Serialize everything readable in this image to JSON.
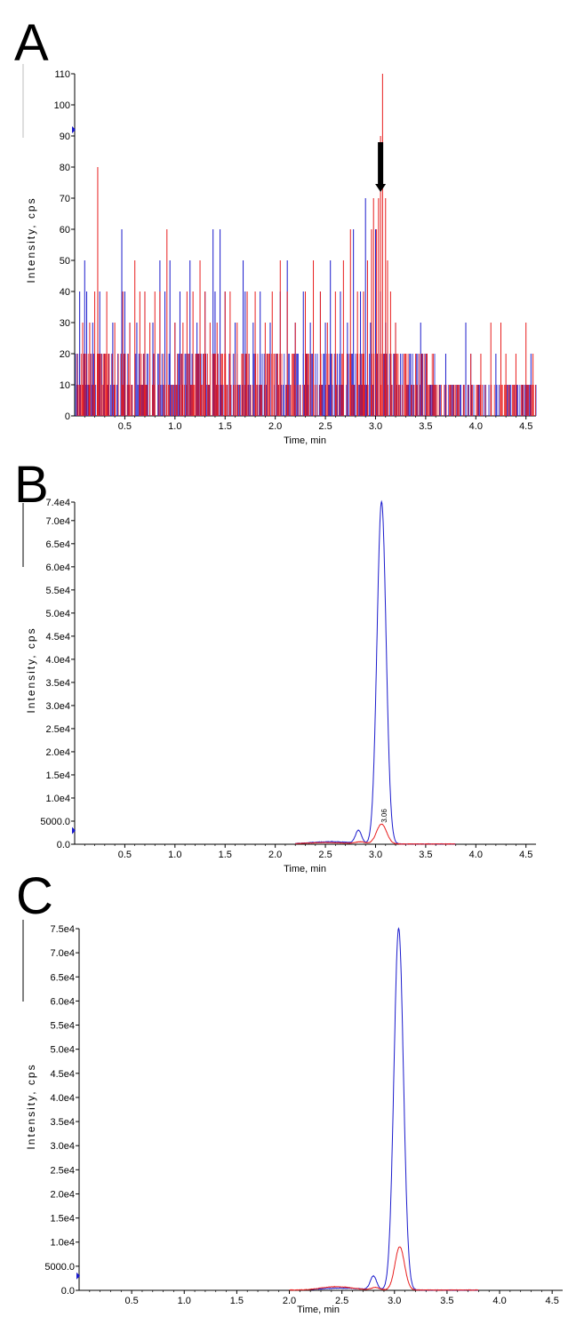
{
  "figure": {
    "colors": {
      "series1": "#1a1acc",
      "series2": "#e81e1e",
      "axis": "#000000"
    }
  },
  "chart_data": [
    {
      "panel": "A",
      "type": "line",
      "style": "noisy-sticks",
      "xlabel": "Time, min",
      "ylabel": "Intensity, cps",
      "xlim": [
        0.0,
        4.6
      ],
      "ylim": [
        0,
        110
      ],
      "x_ticks": [
        "0.5",
        "1.0",
        "1.5",
        "2.0",
        "2.5",
        "3.0",
        "3.5",
        "4.0",
        "4.5"
      ],
      "x_tick_values": [
        0.5,
        1.0,
        1.5,
        2.0,
        2.5,
        3.0,
        3.5,
        4.0,
        4.5
      ],
      "y_ticks": [
        "0",
        "10",
        "20",
        "30",
        "40",
        "50",
        "60",
        "70",
        "80",
        "90",
        "100",
        "110"
      ],
      "y_tick_values": [
        0,
        10,
        20,
        30,
        40,
        50,
        60,
        70,
        80,
        90,
        100,
        110
      ],
      "annotation": {
        "type": "arrow",
        "x": 3.05,
        "y_from": 88,
        "y_to": 72
      },
      "series": [
        {
          "name": "blue trace",
          "color": "#1a1acc",
          "spikes": [
            [
              0.05,
              40
            ],
            [
              0.1,
              50
            ],
            [
              0.12,
              40
            ],
            [
              0.18,
              30
            ],
            [
              0.25,
              40
            ],
            [
              0.3,
              20
            ],
            [
              0.38,
              30
            ],
            [
              0.47,
              60
            ],
            [
              0.5,
              40
            ],
            [
              0.55,
              30
            ],
            [
              0.62,
              30
            ],
            [
              0.7,
              40
            ],
            [
              0.78,
              30
            ],
            [
              0.85,
              50
            ],
            [
              0.9,
              40
            ],
            [
              0.95,
              50
            ],
            [
              1.0,
              30
            ],
            [
              1.05,
              40
            ],
            [
              1.15,
              50
            ],
            [
              1.22,
              30
            ],
            [
              1.3,
              40
            ],
            [
              1.38,
              60
            ],
            [
              1.4,
              40
            ],
            [
              1.45,
              60
            ],
            [
              1.5,
              40
            ],
            [
              1.6,
              30
            ],
            [
              1.68,
              50
            ],
            [
              1.7,
              40
            ],
            [
              1.78,
              30
            ],
            [
              1.85,
              40
            ],
            [
              1.95,
              30
            ],
            [
              2.05,
              40
            ],
            [
              2.12,
              50
            ],
            [
              2.2,
              30
            ],
            [
              2.28,
              40
            ],
            [
              2.35,
              30
            ],
            [
              2.45,
              40
            ],
            [
              2.5,
              30
            ],
            [
              2.55,
              50
            ],
            [
              2.65,
              40
            ],
            [
              2.72,
              30
            ],
            [
              2.78,
              60
            ],
            [
              2.85,
              40
            ],
            [
              2.9,
              70
            ],
            [
              2.95,
              30
            ],
            [
              3.0,
              60
            ],
            [
              3.05,
              40
            ],
            [
              3.1,
              30
            ],
            [
              3.2,
              30
            ],
            [
              3.25,
              20
            ],
            [
              3.35,
              20
            ],
            [
              3.45,
              30
            ],
            [
              3.5,
              20
            ],
            [
              3.55,
              10
            ],
            [
              3.6,
              10
            ],
            [
              3.7,
              20
            ],
            [
              3.75,
              10
            ],
            [
              3.85,
              10
            ],
            [
              3.9,
              30
            ],
            [
              3.95,
              20
            ],
            [
              4.05,
              10
            ],
            [
              4.15,
              10
            ],
            [
              4.2,
              20
            ],
            [
              4.3,
              10
            ],
            [
              4.4,
              10
            ],
            [
              4.5,
              10
            ],
            [
              4.55,
              20
            ]
          ],
          "base": {
            "x_start": 0.0,
            "x_end": 4.6,
            "step": 0.01,
            "early_max": 20,
            "late_max": 10,
            "transition_x": 3.6
          }
        },
        {
          "name": "red trace",
          "color": "#e81e1e",
          "spikes": [
            [
              0.08,
              30
            ],
            [
              0.15,
              30
            ],
            [
              0.2,
              40
            ],
            [
              0.23,
              80
            ],
            [
              0.32,
              40
            ],
            [
              0.4,
              30
            ],
            [
              0.48,
              40
            ],
            [
              0.55,
              30
            ],
            [
              0.6,
              50
            ],
            [
              0.65,
              40
            ],
            [
              0.7,
              40
            ],
            [
              0.75,
              30
            ],
            [
              0.8,
              40
            ],
            [
              0.85,
              40
            ],
            [
              0.92,
              60
            ],
            [
              1.0,
              30
            ],
            [
              1.08,
              30
            ],
            [
              1.12,
              40
            ],
            [
              1.18,
              40
            ],
            [
              1.25,
              50
            ],
            [
              1.3,
              40
            ],
            [
              1.35,
              30
            ],
            [
              1.42,
              30
            ],
            [
              1.5,
              40
            ],
            [
              1.55,
              40
            ],
            [
              1.62,
              30
            ],
            [
              1.72,
              40
            ],
            [
              1.8,
              40
            ],
            [
              1.9,
              30
            ],
            [
              1.97,
              40
            ],
            [
              2.05,
              50
            ],
            [
              2.12,
              40
            ],
            [
              2.2,
              30
            ],
            [
              2.3,
              40
            ],
            [
              2.38,
              50
            ],
            [
              2.45,
              40
            ],
            [
              2.52,
              30
            ],
            [
              2.6,
              40
            ],
            [
              2.68,
              50
            ],
            [
              2.75,
              60
            ],
            [
              2.82,
              40
            ],
            [
              2.88,
              40
            ],
            [
              2.92,
              50
            ],
            [
              2.96,
              60
            ],
            [
              2.98,
              70
            ],
            [
              3.01,
              60
            ],
            [
              3.03,
              70
            ],
            [
              3.05,
              90
            ],
            [
              3.07,
              110
            ],
            [
              3.1,
              70
            ],
            [
              3.12,
              50
            ],
            [
              3.15,
              40
            ],
            [
              3.2,
              30
            ],
            [
              3.3,
              20
            ],
            [
              3.4,
              20
            ],
            [
              3.6,
              10
            ],
            [
              3.8,
              10
            ],
            [
              3.95,
              20
            ],
            [
              4.05,
              20
            ],
            [
              4.15,
              30
            ],
            [
              4.25,
              30
            ],
            [
              4.3,
              20
            ],
            [
              4.4,
              20
            ],
            [
              4.5,
              30
            ],
            [
              4.57,
              20
            ]
          ],
          "base": {
            "x_start": 0.005,
            "x_end": 4.6,
            "step": 0.01,
            "early_max": 20,
            "late_max": 10,
            "transition_x": 3.6
          }
        }
      ]
    },
    {
      "panel": "B",
      "type": "line",
      "style": "peaks",
      "xlabel": "Time, min",
      "ylabel": "Intensity, cps",
      "xlim": [
        0.0,
        4.6
      ],
      "ylim": [
        0,
        74000
      ],
      "x_ticks": [
        "0.5",
        "1.0",
        "1.5",
        "2.0",
        "2.5",
        "3.0",
        "3.5",
        "4.0",
        "4.5"
      ],
      "x_tick_values": [
        0.5,
        1.0,
        1.5,
        2.0,
        2.5,
        3.0,
        3.5,
        4.0,
        4.5
      ],
      "y_ticks": [
        "0.0",
        "5000.0",
        "1.0e4",
        "1.5e4",
        "2.0e4",
        "2.5e4",
        "3.0e4",
        "3.5e4",
        "4.0e4",
        "4.5e4",
        "5.0e4",
        "5.5e4",
        "6.0e4",
        "6.5e4",
        "7.0e4",
        "7.4e4"
      ],
      "y_tick_values": [
        0,
        5000,
        10000,
        15000,
        20000,
        25000,
        30000,
        35000,
        40000,
        45000,
        50000,
        55000,
        60000,
        65000,
        70000,
        74000
      ],
      "annotation": {
        "type": "text",
        "text": "3.06",
        "x": 3.06,
        "y": 9000
      },
      "series": [
        {
          "name": "blue trace",
          "color": "#1a1acc",
          "x_range": [
            2.2,
            3.8
          ],
          "peaks": [
            [
              3.06,
              74000,
              0.045
            ],
            [
              2.83,
              2800,
              0.03
            ],
            [
              2.55,
              500,
              0.2
            ]
          ]
        },
        {
          "name": "red trace",
          "color": "#e81e1e",
          "x_range": [
            2.2,
            3.8
          ],
          "peaks": [
            [
              3.06,
              4300,
              0.05
            ],
            [
              2.85,
              400,
              0.05
            ],
            [
              2.5,
              300,
              0.2
            ]
          ]
        }
      ]
    },
    {
      "panel": "C",
      "type": "line",
      "style": "peaks",
      "xlabel": "Time, min",
      "ylabel": "Intensity, cps",
      "xlim": [
        0.0,
        4.6
      ],
      "ylim": [
        0,
        75000
      ],
      "x_ticks": [
        "0.5",
        "1.0",
        "1.5",
        "2.0",
        "2.5",
        "3.0",
        "3.5",
        "4.0",
        "4.5"
      ],
      "x_tick_values": [
        0.5,
        1.0,
        1.5,
        2.0,
        2.5,
        3.0,
        3.5,
        4.0,
        4.5
      ],
      "y_ticks": [
        "0.0",
        "5000.0",
        "1.0e4",
        "1.5e4",
        "2.0e4",
        "2.5e4",
        "3.0e4",
        "3.5e4",
        "4.0e4",
        "4.5e4",
        "5.0e4",
        "5.5e4",
        "6.0e4",
        "6.5e4",
        "7.0e4",
        "7.5e4"
      ],
      "y_tick_values": [
        0,
        5000,
        10000,
        15000,
        20000,
        25000,
        30000,
        35000,
        40000,
        45000,
        50000,
        55000,
        60000,
        65000,
        70000,
        75000
      ],
      "series": [
        {
          "name": "blue trace",
          "color": "#1a1acc",
          "x_range": [
            2.2,
            3.8
          ],
          "peaks": [
            [
              3.04,
              75000,
              0.045
            ],
            [
              2.8,
              2800,
              0.03
            ],
            [
              2.5,
              400,
              0.2
            ]
          ]
        },
        {
          "name": "red trace",
          "color": "#e81e1e",
          "x_range": [
            2.0,
            3.8
          ],
          "peaks": [
            [
              3.05,
              9000,
              0.045
            ],
            [
              2.82,
              500,
              0.04
            ],
            [
              2.45,
              700,
              0.15
            ]
          ]
        }
      ]
    }
  ]
}
